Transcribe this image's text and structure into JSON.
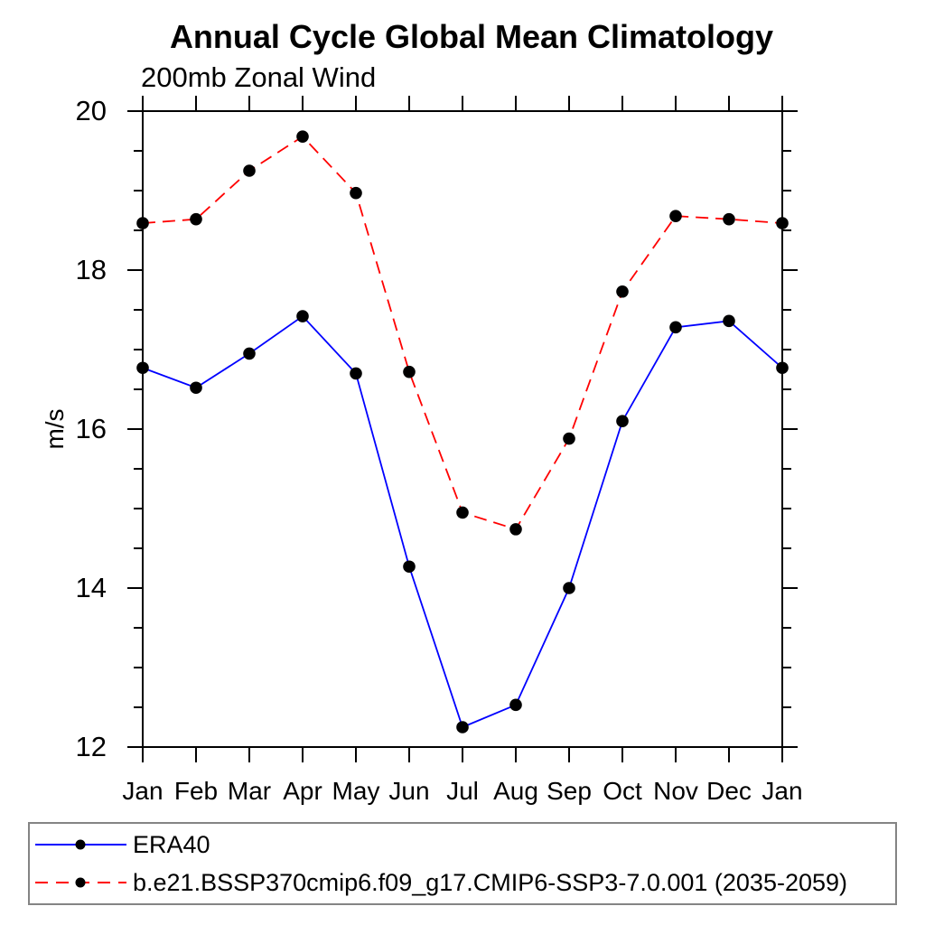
{
  "title": "Annual Cycle Global Mean Climatology",
  "subtitle": "200mb Zonal Wind",
  "ylabel": "m/s",
  "chart_data": {
    "type": "line",
    "categories": [
      "Jan",
      "Feb",
      "Mar",
      "Apr",
      "May",
      "Jun",
      "Jul",
      "Aug",
      "Sep",
      "Oct",
      "Nov",
      "Dec",
      "Jan"
    ],
    "series": [
      {
        "name": "ERA40",
        "color": "#0000ff",
        "line_style": "solid",
        "marker": "filled-circle",
        "marker_color": "#000000",
        "values": [
          16.77,
          16.52,
          16.95,
          17.42,
          16.7,
          14.27,
          12.25,
          12.53,
          14.0,
          16.1,
          17.28,
          17.36,
          16.77
        ]
      },
      {
        "name": "b.e21.BSSP370cmip6.f09_g17.CMIP6-SSP3-7.0.001 (2035-2059)",
        "color": "#ff0000",
        "line_style": "dashed",
        "marker": "filled-circle",
        "marker_color": "#000000",
        "values": [
          18.59,
          18.64,
          19.25,
          19.68,
          18.97,
          16.72,
          14.95,
          14.74,
          15.88,
          17.73,
          18.68,
          18.64,
          18.59
        ]
      }
    ],
    "xlabel": "",
    "ylabel": "m/s",
    "ylim": [
      12,
      20
    ],
    "y_major_ticks": [
      12,
      14,
      16,
      18,
      20
    ],
    "y_minor_step": 0.5,
    "grid": false,
    "axis_box": true,
    "legend_position": "bottom-left-box"
  }
}
